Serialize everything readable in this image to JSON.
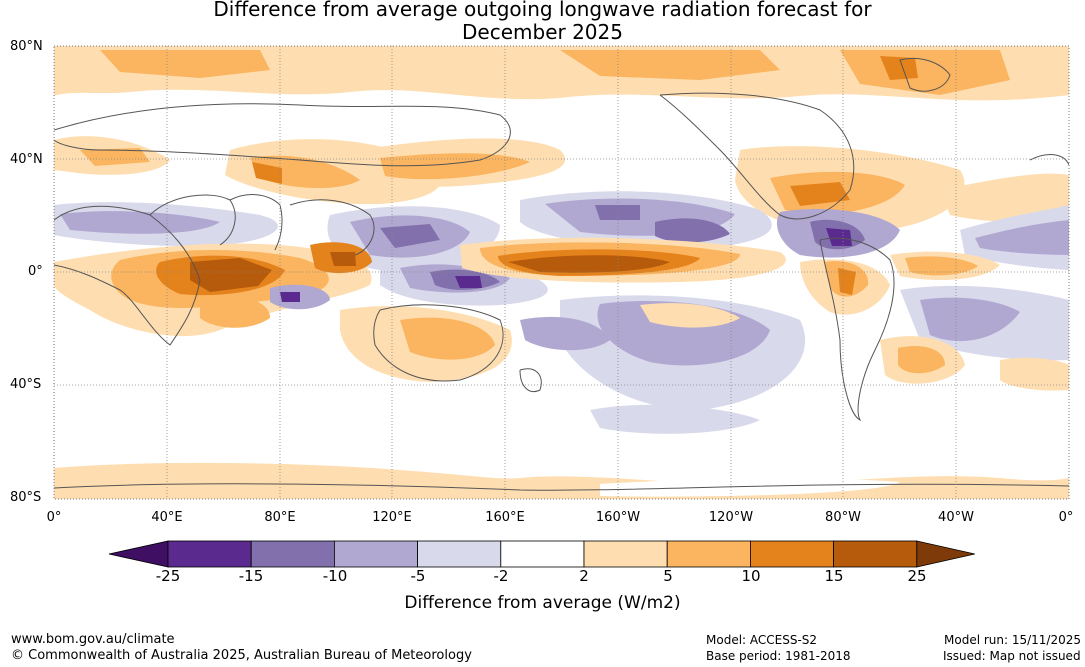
{
  "title_line1": "Difference from average outgoing longwave radiation forecast for",
  "title_line2": "December 2025",
  "lat_labels": [
    "80°N",
    "40°N",
    "0°",
    "40°S",
    "80°S"
  ],
  "lon_labels": [
    "0°",
    "40°E",
    "80°E",
    "120°E",
    "160°E",
    "160°W",
    "120°W",
    "80°W",
    "40°W",
    "0°"
  ],
  "colorbar": {
    "title": "Difference from average (W/m2)",
    "ticks": [
      "-25",
      "-15",
      "-10",
      "-5",
      "-2",
      "2",
      "5",
      "10",
      "15",
      "25"
    ],
    "colors": [
      "#3f0f63",
      "#5a2a8e",
      "#8270ad",
      "#b1a8d1",
      "#d9d9ec",
      "#ffffff",
      "#fedeb0",
      "#fbb45f",
      "#e4821b",
      "#b65a0b",
      "#7e3a08"
    ]
  },
  "footer": {
    "website": "www.bom.gov.au/climate",
    "copyright": "© Commonwealth of Australia 2025, Australian Bureau of Meteorology",
    "model": "Model: ACCESS-S2",
    "base_period": "Base period: 1981-2018",
    "model_run": "Model run: 15/11/2025",
    "issued": "Issued: Map not issued"
  }
}
